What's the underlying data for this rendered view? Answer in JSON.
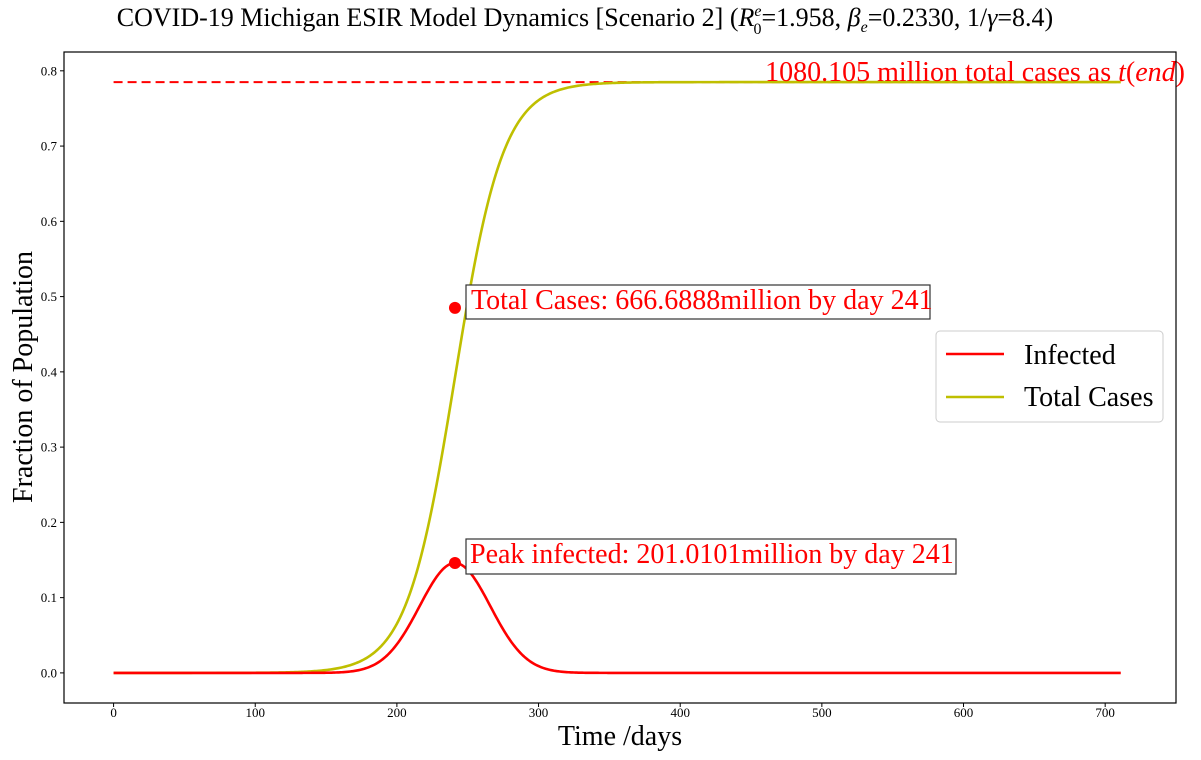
{
  "chart_data": {
    "type": "line",
    "title_parts": {
      "prefix": "COVID-19 Michigan ESIR Model Dynamics [Scenario 2] (",
      "r_symbol": "R",
      "r_sup": "e",
      "r_sub": "0",
      "r_value": "=1.958, ",
      "beta_symbol": "β",
      "beta_sub": "e",
      "beta_value": "=0.2330, 1/",
      "gamma_symbol": "γ",
      "gamma_value": "=8.4)"
    },
    "xlabel": "Time /days",
    "ylabel": "Fraction of Population",
    "xlim": [
      -35,
      750
    ],
    "ylim": [
      -0.04,
      0.825
    ],
    "xticks": [
      0,
      100,
      200,
      300,
      400,
      500,
      600,
      700
    ],
    "yticks": [
      0.0,
      0.1,
      0.2,
      0.3,
      0.4,
      0.5,
      0.6,
      0.7,
      0.8
    ],
    "grid": false,
    "legend_position": "center-right",
    "series": [
      {
        "name": "Infected",
        "color": "#ff0000",
        "model": "infected",
        "peak_x": 241,
        "peak_y": 0.146,
        "width_days": 25
      },
      {
        "name": "Total Cases",
        "color": "#bfbf00",
        "model": "total",
        "mid_x": 241,
        "final": 0.785,
        "rate": 0.0585
      }
    ],
    "x_range": [
      0,
      711
    ],
    "final_total_line": {
      "y": 0.785,
      "color": "#ff0000",
      "style": "dashed"
    },
    "annotations": {
      "total_point": {
        "x": 241,
        "y": 0.485,
        "text": "Total Cases: 666.6888million by day 241"
      },
      "peak_point": {
        "x": 241,
        "y": 0.146,
        "text": "Peak infected: 201.0101million by day 241"
      },
      "end_text": {
        "main": "1080.105 million total cases as ",
        "t": "t",
        "paren_open": "(",
        "end_word": "end",
        "paren_close": ")"
      }
    }
  }
}
